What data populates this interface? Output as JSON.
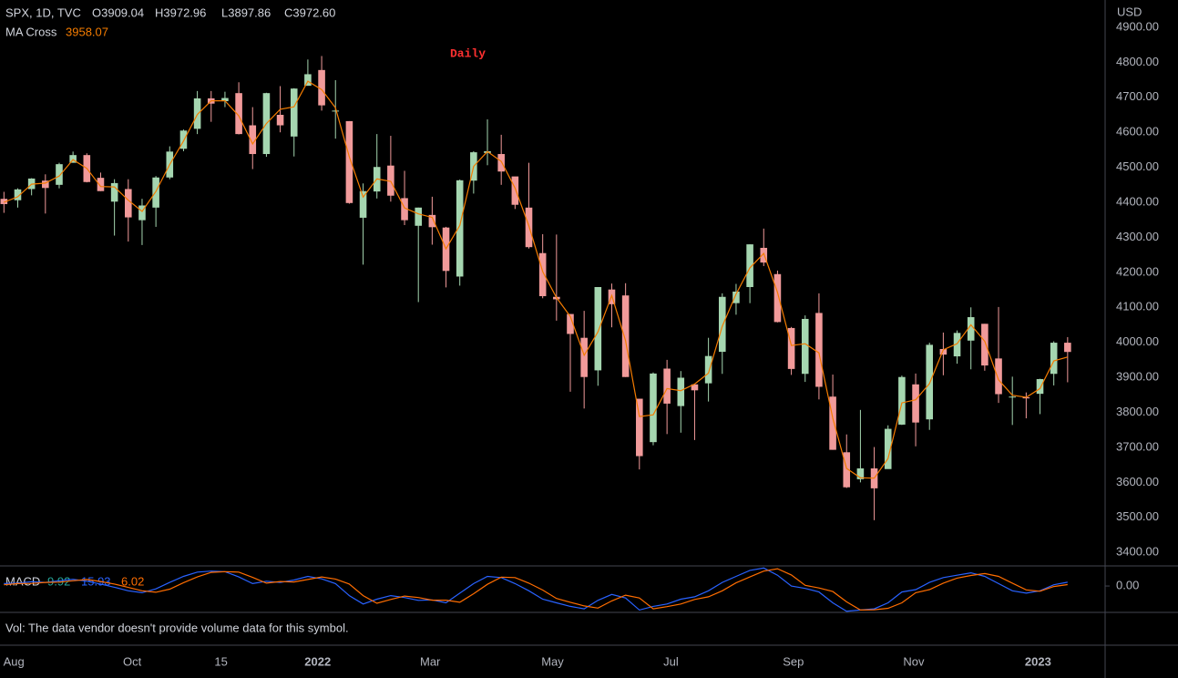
{
  "header": {
    "symbol": "SPX, 1D, TVC",
    "open": "O3909.04",
    "high": "H3972.96",
    "low": "L3897.86",
    "close": "C3972.60",
    "currency": "USD"
  },
  "annotation": "Daily",
  "volume_note": "Vol: The data vendor doesn't provide volume data for this symbol.",
  "chart_data": {
    "type": "candlestick",
    "up_color": "#a5d6b0",
    "down_color": "#f19a9a",
    "xlim": [
      "2021-07-26",
      "2023-02-06"
    ],
    "xticks": [
      {
        "value": "2021-08-02",
        "label": "Aug"
      },
      {
        "value": "2021-10-01",
        "label": "Oct"
      },
      {
        "value": "2021-11-15",
        "label": "15"
      },
      {
        "value": "2022-01-03",
        "label": "2022"
      },
      {
        "value": "2022-03-01",
        "label": "Mar"
      },
      {
        "value": "2022-05-02",
        "label": "May"
      },
      {
        "value": "2022-07-01",
        "label": "Jul"
      },
      {
        "value": "2022-09-01",
        "label": "Sep"
      },
      {
        "value": "2022-11-01",
        "label": "Nov"
      },
      {
        "value": "2023-01-03",
        "label": "2023"
      }
    ],
    "ylim": [
      3364,
      4978
    ],
    "yticks": [
      {
        "value": 3400,
        "label": "3400.00"
      },
      {
        "value": 3500,
        "label": "3500.00"
      },
      {
        "value": 3600,
        "label": "3600.00"
      },
      {
        "value": 3700,
        "label": "3700.00"
      },
      {
        "value": 3800,
        "label": "3800.00"
      },
      {
        "value": 3900,
        "label": "3900.00"
      },
      {
        "value": 4000,
        "label": "4000.00"
      },
      {
        "value": 4100,
        "label": "4100.00"
      },
      {
        "value": 4200,
        "label": "4200.00"
      },
      {
        "value": 4300,
        "label": "4300.00"
      },
      {
        "value": 4400,
        "label": "4400.00"
      },
      {
        "value": 4500,
        "label": "4500.00"
      },
      {
        "value": 4600,
        "label": "4600.00"
      },
      {
        "value": 4700,
        "label": "4700.00"
      },
      {
        "value": 4800,
        "label": "4800.00"
      },
      {
        "value": 4900,
        "label": "4900.00"
      }
    ],
    "x": [
      "2021-07-30",
      "2021-08-06",
      "2021-08-13",
      "2021-08-20",
      "2021-08-27",
      "2021-09-03",
      "2021-09-10",
      "2021-09-17",
      "2021-09-24",
      "2021-10-01",
      "2021-10-08",
      "2021-10-15",
      "2021-10-22",
      "2021-10-29",
      "2021-11-05",
      "2021-11-12",
      "2021-11-19",
      "2021-11-26",
      "2021-12-03",
      "2021-12-10",
      "2021-12-17",
      "2021-12-24",
      "2021-12-31",
      "2022-01-07",
      "2022-01-14",
      "2022-01-21",
      "2022-01-28",
      "2022-02-04",
      "2022-02-11",
      "2022-02-18",
      "2022-02-25",
      "2022-03-04",
      "2022-03-11",
      "2022-03-18",
      "2022-03-25",
      "2022-04-01",
      "2022-04-08",
      "2022-04-15",
      "2022-04-22",
      "2022-04-29",
      "2022-05-06",
      "2022-05-13",
      "2022-05-20",
      "2022-05-27",
      "2022-06-03",
      "2022-06-10",
      "2022-06-17",
      "2022-06-24",
      "2022-07-01",
      "2022-07-08",
      "2022-07-15",
      "2022-07-22",
      "2022-07-29",
      "2022-08-05",
      "2022-08-12",
      "2022-08-19",
      "2022-08-26",
      "2022-09-02",
      "2022-09-09",
      "2022-09-16",
      "2022-09-23",
      "2022-09-30",
      "2022-10-07",
      "2022-10-14",
      "2022-10-21",
      "2022-10-28",
      "2022-11-04",
      "2022-11-11",
      "2022-11-18",
      "2022-11-25",
      "2022-12-02",
      "2022-12-09",
      "2022-12-16",
      "2022-12-23",
      "2022-12-30",
      "2023-01-06",
      "2023-01-13",
      "2023-01-20"
    ],
    "open": [
      4410,
      4406,
      4438,
      4462,
      4450,
      4513,
      4535,
      4470,
      4402,
      4438,
      4349,
      4385,
      4471,
      4553,
      4610,
      4697,
      4689,
      4712,
      4620,
      4538,
      4650,
      4588,
      4733,
      4778,
      4662,
      4632,
      4356,
      4431,
      4505,
      4412,
      4333,
      4364,
      4328,
      4188,
      4462,
      4541,
      4538,
      4474,
      4385,
      4255,
      4130,
      4081,
      4013,
      3920,
      4151,
      4134,
      3839,
      3715,
      3925,
      3818,
      3880,
      3883,
      3973,
      4112,
      4158,
      4270,
      4195,
      4041,
      3910,
      4084,
      3845,
      3686,
      3609,
      3640,
      3638,
      3765,
      3880,
      3780,
      3981,
      3960,
      4005,
      4053,
      3954,
      3844,
      3843,
      3853,
      3910,
      3999
    ],
    "high": [
      4430,
      4440,
      4469,
      4480,
      4513,
      4545,
      4540,
      4485,
      4466,
      4466,
      4410,
      4475,
      4560,
      4608,
      4718,
      4718,
      4716,
      4743,
      4672,
      4713,
      4732,
      4726,
      4808,
      4818,
      4749,
      4632,
      4454,
      4595,
      4590,
      4490,
      4385,
      4416,
      4330,
      4465,
      4546,
      4637,
      4593,
      4471,
      4513,
      4309,
      4308,
      4081,
      4090,
      4158,
      4168,
      4169,
      3838,
      3914,
      3950,
      3918,
      3880,
      4013,
      4140,
      4167,
      4280,
      4325,
      4205,
      4044,
      4077,
      4140,
      3908,
      3737,
      3807,
      3701,
      3763,
      3905,
      3911,
      3999,
      4028,
      4034,
      4100,
      4053,
      4101,
      3902,
      3857,
      3896,
      4003,
      4015
    ],
    "low": [
      4370,
      4385,
      4420,
      4368,
      4440,
      4513,
      4457,
      4432,
      4305,
      4288,
      4278,
      4330,
      4466,
      4546,
      4595,
      4630,
      4672,
      4594,
      4495,
      4530,
      4600,
      4531,
      4733,
      4662,
      4582,
      4396,
      4222,
      4411,
      4402,
      4335,
      4115,
      4279,
      4157,
      4162,
      4425,
      4506,
      4450,
      4381,
      4268,
      4126,
      4062,
      3859,
      3811,
      3876,
      4043,
      3901,
      3637,
      3706,
      3738,
      3742,
      3721,
      3831,
      3910,
      4079,
      4112,
      4218,
      4057,
      3907,
      3887,
      3837,
      3693,
      3584,
      3600,
      3492,
      3647,
      3764,
      3703,
      3750,
      3906,
      3939,
      3923,
      3919,
      3827,
      3764,
      3783,
      3795,
      3877,
      3886
    ],
    "close": [
      4395,
      4437,
      4468,
      4441,
      4509,
      4535,
      4458,
      4432,
      4455,
      4357,
      4391,
      4471,
      4545,
      4605,
      4697,
      4682,
      4698,
      4595,
      4538,
      4712,
      4620,
      4725,
      4766,
      4677,
      4662,
      4398,
      4432,
      4501,
      4419,
      4349,
      4385,
      4329,
      4204,
      4463,
      4543,
      4546,
      4488,
      4393,
      4272,
      4132,
      4123,
      4024,
      3901,
      4158,
      4109,
      3901,
      3675,
      3911,
      3825,
      3899,
      3863,
      3961,
      4130,
      4145,
      4280,
      4228,
      4058,
      3924,
      4067,
      3873,
      3693,
      3586,
      3640,
      3583,
      3753,
      3901,
      3771,
      3993,
      3965,
      4027,
      4072,
      3934,
      3852,
      3845,
      3840,
      3895,
      3999,
      3972.6
    ],
    "series": [
      {
        "name": "MA Cross",
        "color": "#f57c00",
        "values": [
          4400,
          4416,
          4452,
          4455,
          4475,
          4522,
          4497,
          4445,
          4444,
          4406,
          4374,
          4431,
          4508,
          4575,
          4651,
          4690,
          4690,
          4647,
          4567,
          4625,
          4666,
          4673,
          4746,
          4722,
          4670,
          4530,
          4415,
          4467,
          4460,
          4384,
          4367,
          4357,
          4267,
          4334,
          4503,
          4545,
          4517,
          4441,
          4333,
          4202,
          4128,
          4074,
          3963,
          4030,
          4134,
          4005,
          3788,
          3793,
          3868,
          3862,
          3881,
          3912,
          4046,
          4138,
          4213,
          4254,
          4143,
          3991,
          3996,
          3970,
          3783,
          3640,
          3613,
          3612,
          3668,
          3827,
          3836,
          3882,
          3979,
          3996,
          4050,
          4003,
          3893,
          3849,
          3843,
          3868,
          3947,
          3958.07
        ]
      }
    ],
    "macd": {
      "name": "MACD",
      "histogram_value": 9.92,
      "histogram_color": "#26a69a",
      "ylim": [
        -110,
        80
      ],
      "yticks": [
        {
          "value": 0,
          "label": "0.00"
        }
      ],
      "series": [
        {
          "color": "#2962ff",
          "values": [
            10,
            12,
            18,
            15,
            22,
            28,
            20,
            8,
            -5,
            -20,
            -28,
            -12,
            15,
            40,
            58,
            62,
            60,
            38,
            10,
            20,
            15,
            25,
            40,
            30,
            10,
            -40,
            -75,
            -55,
            -40,
            -48,
            -60,
            -58,
            -70,
            -30,
            10,
            40,
            35,
            10,
            -20,
            -55,
            -70,
            -85,
            -95,
            -60,
            -35,
            -50,
            -100,
            -85,
            -75,
            -55,
            -45,
            -20,
            15,
            40,
            65,
            75,
            45,
            0,
            -10,
            -25,
            -70,
            -105,
            -100,
            -95,
            -70,
            -25,
            -15,
            15,
            35,
            45,
            55,
            40,
            10,
            -20,
            -30,
            -20,
            5,
            15.93
          ]
        },
        {
          "color": "#ff6d00",
          "values": [
            5,
            10,
            11,
            15,
            16,
            22,
            27,
            19,
            8,
            -6,
            -20,
            -26,
            -13,
            14,
            38,
            57,
            60,
            58,
            36,
            12,
            19,
            17,
            27,
            38,
            29,
            8,
            -40,
            -72,
            -56,
            -42,
            -48,
            -59,
            -59,
            -68,
            -32,
            7,
            37,
            35,
            12,
            -17,
            -52,
            -68,
            -83,
            -92,
            -62,
            -38,
            -50,
            -95,
            -86,
            -75,
            -56,
            -45,
            -20,
            13,
            38,
            62,
            72,
            46,
            3,
            -8,
            -23,
            -66,
            -100,
            -99,
            -93,
            -70,
            -28,
            -15,
            12,
            33,
            44,
            52,
            40,
            12,
            -16,
            -22,
            -2,
            6.02
          ]
        }
      ]
    }
  }
}
